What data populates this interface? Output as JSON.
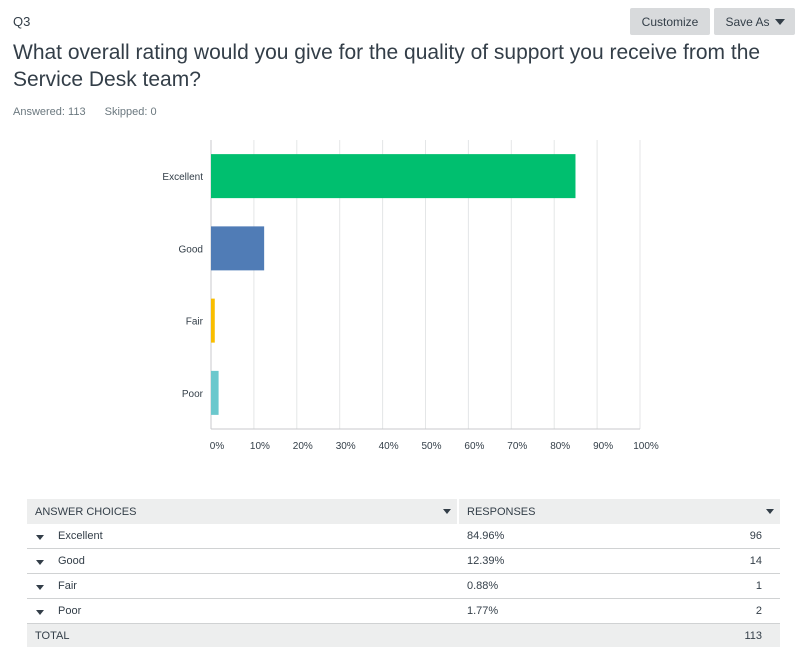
{
  "question": {
    "number": "Q3",
    "title": "What overall rating would you give for the quality of support you receive from the Service Desk team?",
    "answered": "Answered: 113",
    "skipped": "Skipped: 0"
  },
  "toolbar": {
    "customize_label": "Customize",
    "save_as_label": "Save As"
  },
  "chart_data": {
    "type": "bar",
    "orientation": "horizontal",
    "categories": [
      "Excellent",
      "Good",
      "Fair",
      "Poor"
    ],
    "values": [
      84.96,
      12.39,
      0.88,
      1.77
    ],
    "colors": [
      "#00bf6f",
      "#507cb6",
      "#f9be00",
      "#6bc8cd"
    ],
    "xlim": [
      0,
      100
    ],
    "xticks": [
      "0%",
      "10%",
      "20%",
      "30%",
      "40%",
      "50%",
      "60%",
      "70%",
      "80%",
      "90%",
      "100%"
    ],
    "grid": true
  },
  "table": {
    "headers": {
      "choices": "ANSWER CHOICES",
      "responses": "RESPONSES"
    },
    "rows": [
      {
        "choice": "Excellent",
        "percent": "84.96%",
        "count": "96"
      },
      {
        "choice": "Good",
        "percent": "12.39%",
        "count": "14"
      },
      {
        "choice": "Fair",
        "percent": "0.88%",
        "count": "1"
      },
      {
        "choice": "Poor",
        "percent": "1.77%",
        "count": "2"
      }
    ],
    "total_label": "TOTAL",
    "total_count": "113"
  }
}
